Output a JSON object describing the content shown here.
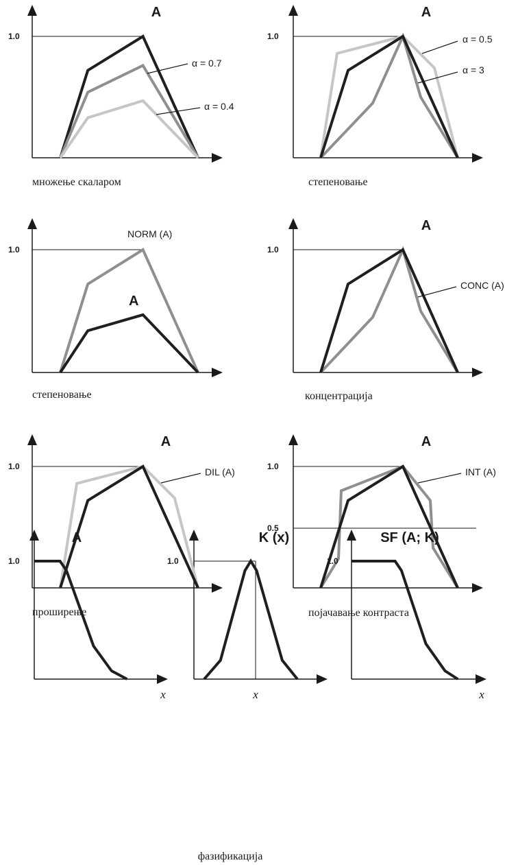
{
  "colors": {
    "dark": "#1f1f1f",
    "mid": "#8f8f8f",
    "light": "#c6c6c6",
    "axis": "#1a1a1a"
  },
  "panels": [
    {
      "id": "p1",
      "title": "A",
      "caption": "множење скаларом",
      "ticks": [
        "1.0"
      ],
      "curves": [
        {
          "color": "dark",
          "points": [
            [
              0,
              0
            ],
            [
              0.2,
              0.72
            ],
            [
              0.6,
              1.0
            ],
            [
              1,
              0
            ]
          ]
        },
        {
          "color": "mid",
          "points": [
            [
              0,
              0
            ],
            [
              0.2,
              0.54
            ],
            [
              0.6,
              0.76
            ],
            [
              1,
              0
            ]
          ]
        },
        {
          "color": "light",
          "points": [
            [
              0,
              0
            ],
            [
              0.2,
              0.33
            ],
            [
              0.6,
              0.47
            ],
            [
              1,
              0
            ]
          ]
        }
      ],
      "annotations": [
        {
          "text": "α = 0.7"
        },
        {
          "text": "α = 0.4"
        }
      ]
    },
    {
      "id": "p2",
      "title": "A",
      "caption": "степеновање",
      "ticks": [
        "1.0"
      ],
      "curves": [
        {
          "color": "light",
          "points": [
            [
              0,
              0
            ],
            [
              0.12,
              0.86
            ],
            [
              0.6,
              1.0
            ],
            [
              0.83,
              0.74
            ],
            [
              1,
              0
            ]
          ]
        },
        {
          "color": "mid",
          "points": [
            [
              0,
              0
            ],
            [
              0.38,
              0.45
            ],
            [
              0.6,
              1.0
            ],
            [
              0.73,
              0.5
            ],
            [
              1,
              0
            ]
          ]
        },
        {
          "color": "dark",
          "points": [
            [
              0,
              0
            ],
            [
              0.2,
              0.72
            ],
            [
              0.6,
              1.0
            ],
            [
              1,
              0
            ]
          ]
        }
      ],
      "annotations": [
        {
          "text": "α = 0.5"
        },
        {
          "text": "α = 3"
        }
      ]
    },
    {
      "id": "p3",
      "title": "",
      "caption": "степеновање",
      "ticks": [
        "1.0"
      ],
      "curves": [
        {
          "color": "mid",
          "points": [
            [
              0,
              0
            ],
            [
              0.2,
              0.72
            ],
            [
              0.6,
              1.0
            ],
            [
              1,
              0
            ]
          ]
        },
        {
          "color": "dark",
          "points": [
            [
              0,
              0
            ],
            [
              0.2,
              0.34
            ],
            [
              0.6,
              0.47
            ],
            [
              1,
              0
            ]
          ]
        }
      ],
      "annotations": [
        {
          "text": "NORM (A)"
        },
        {
          "text": "A"
        }
      ]
    },
    {
      "id": "p4",
      "title": "A",
      "caption": "концентрација",
      "ticks": [
        "1.0"
      ],
      "curves": [
        {
          "color": "mid",
          "points": [
            [
              0,
              0
            ],
            [
              0.38,
              0.45
            ],
            [
              0.6,
              1.0
            ],
            [
              0.73,
              0.5
            ],
            [
              1,
              0
            ]
          ]
        },
        {
          "color": "dark",
          "points": [
            [
              0,
              0
            ],
            [
              0.2,
              0.72
            ],
            [
              0.6,
              1.0
            ],
            [
              1,
              0
            ]
          ]
        }
      ],
      "annotations": [
        {
          "text": "CONC (A)"
        }
      ]
    },
    {
      "id": "p5",
      "title": "A",
      "caption": "проширење",
      "ticks": [
        "1.0"
      ],
      "curves": [
        {
          "color": "light",
          "points": [
            [
              0,
              0
            ],
            [
              0.12,
              0.86
            ],
            [
              0.6,
              1.0
            ],
            [
              0.83,
              0.74
            ],
            [
              1,
              0
            ]
          ]
        },
        {
          "color": "dark",
          "points": [
            [
              0,
              0
            ],
            [
              0.2,
              0.72
            ],
            [
              0.6,
              1.0
            ],
            [
              1,
              0
            ]
          ]
        }
      ],
      "annotations": [
        {
          "text": "DIL (A)"
        }
      ]
    },
    {
      "id": "p6",
      "title": "A",
      "caption": "појачавање контраста",
      "ticks": [
        "1.0",
        "0.5"
      ],
      "curves": [
        {
          "color": "mid",
          "points": [
            [
              0,
              0
            ],
            [
              0.13,
              0.24
            ],
            [
              0.15,
              0.8
            ],
            [
              0.6,
              1.0
            ],
            [
              0.8,
              0.72
            ],
            [
              0.82,
              0.33
            ],
            [
              1,
              0
            ]
          ]
        },
        {
          "color": "dark",
          "points": [
            [
              0,
              0
            ],
            [
              0.2,
              0.72
            ],
            [
              0.6,
              1.0
            ],
            [
              1,
              0
            ]
          ]
        }
      ],
      "annotations": [
        {
          "text": "INT (A)"
        }
      ]
    },
    {
      "id": "p7",
      "title": "A",
      "caption": "",
      "ticks": [
        "1.0"
      ],
      "xlabel": "x",
      "curves": [
        {
          "color": "dark",
          "points": [
            [
              0,
              1
            ],
            [
              0.2,
              1
            ],
            [
              0.25,
              0.92
            ],
            [
              0.46,
              0.28
            ],
            [
              0.6,
              0.07
            ],
            [
              0.72,
              0
            ]
          ]
        }
      ],
      "annotations": []
    },
    {
      "id": "p8",
      "title": "K (x)",
      "caption": "",
      "ticks": [
        "1.0"
      ],
      "xlabel": "x",
      "curves": [
        {
          "color": "dark",
          "points": [
            [
              0,
              0
            ],
            [
              0.14,
              0.16
            ],
            [
              0.35,
              0.92
            ],
            [
              0.4,
              1.0
            ],
            [
              0.45,
              0.92
            ],
            [
              0.67,
              0.16
            ],
            [
              0.8,
              0
            ]
          ]
        }
      ],
      "annotations": []
    },
    {
      "id": "p9",
      "title": "SF (A; K)",
      "caption": "",
      "ticks": [
        "1.0"
      ],
      "xlabel": "x",
      "curves": [
        {
          "color": "dark",
          "points": [
            [
              0,
              1
            ],
            [
              0.34,
              1
            ],
            [
              0.39,
              0.92
            ],
            [
              0.58,
              0.3
            ],
            [
              0.73,
              0.07
            ],
            [
              0.83,
              0
            ]
          ]
        }
      ],
      "annotations": []
    }
  ],
  "bottom_caption": "фазификација"
}
